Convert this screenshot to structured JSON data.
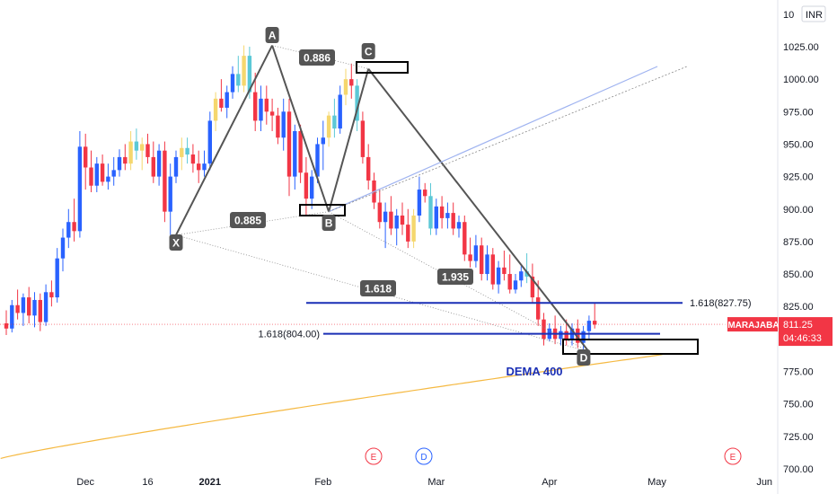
{
  "chart_data": {
    "type": "candlestick",
    "symbol": "AMARAJABAT",
    "currency": "INR",
    "last_price": "811.25",
    "countdown": "04:46:33",
    "y_axis": {
      "ylim": [
        693,
        1052
      ],
      "ticks": [
        "700.00",
        "725.00",
        "750.00",
        "775.00",
        "800.00",
        "825.00",
        "850.00",
        "875.00",
        "900.00",
        "925.00",
        "950.00",
        "975.00",
        "1000.00",
        "1025.00"
      ],
      "top_label": "10"
    },
    "x_axis": {
      "labels": [
        {
          "text": "Dec",
          "idx": 14
        },
        {
          "text": "16",
          "idx": 25
        },
        {
          "text": "2021",
          "idx": 36
        },
        {
          "text": "Feb",
          "idx": 56
        },
        {
          "text": "Mar",
          "idx": 76
        },
        {
          "text": "Apr",
          "idx": 96
        },
        {
          "text": "May",
          "idx": 115
        },
        {
          "text": "Jun",
          "idx": 134
        }
      ],
      "bold": [
        "2021"
      ]
    },
    "candles": [
      [
        812,
        822,
        803,
        808
      ],
      [
        808,
        830,
        805,
        826
      ],
      [
        826,
        838,
        815,
        820
      ],
      [
        820,
        835,
        810,
        832
      ],
      [
        832,
        840,
        812,
        818
      ],
      [
        818,
        836,
        809,
        830
      ],
      [
        830,
        835,
        806,
        813
      ],
      [
        813,
        842,
        810,
        836
      ],
      [
        836,
        845,
        825,
        832
      ],
      [
        832,
        870,
        828,
        862
      ],
      [
        862,
        885,
        852,
        878
      ],
      [
        878,
        900,
        870,
        890
      ],
      [
        890,
        908,
        875,
        883
      ],
      [
        883,
        960,
        878,
        948
      ],
      [
        948,
        958,
        915,
        932
      ],
      [
        932,
        945,
        913,
        918
      ],
      [
        918,
        940,
        913,
        935
      ],
      [
        935,
        942,
        918,
        921
      ],
      [
        921,
        935,
        915,
        925
      ],
      [
        925,
        940,
        918,
        930
      ],
      [
        930,
        946,
        925,
        940
      ],
      [
        940,
        950,
        930,
        935
      ],
      [
        935,
        960,
        930,
        952
      ],
      [
        952,
        962,
        938,
        945
      ],
      [
        945,
        955,
        930,
        950
      ],
      [
        950,
        958,
        935,
        940
      ],
      [
        940,
        952,
        920,
        925
      ],
      [
        925,
        950,
        918,
        945
      ],
      [
        945,
        952,
        890,
        898
      ],
      [
        898,
        935,
        880,
        925
      ],
      [
        925,
        945,
        920,
        940
      ],
      [
        940,
        955,
        930,
        947
      ],
      [
        947,
        955,
        935,
        942
      ],
      [
        942,
        950,
        928,
        935
      ],
      [
        935,
        945,
        920,
        930
      ],
      [
        930,
        945,
        925,
        935
      ],
      [
        935,
        975,
        930,
        968
      ],
      [
        968,
        990,
        960,
        985
      ],
      [
        985,
        1000,
        975,
        978
      ],
      [
        978,
        995,
        970,
        990
      ],
      [
        990,
        1010,
        985,
        1004
      ],
      [
        1004,
        1018,
        990,
        995
      ],
      [
        995,
        1026,
        990,
        1018
      ],
      [
        1018,
        1025,
        985,
        990
      ],
      [
        990,
        1005,
        960,
        968
      ],
      [
        968,
        995,
        960,
        985
      ],
      [
        985,
        995,
        965,
        975
      ],
      [
        975,
        985,
        960,
        972
      ],
      [
        972,
        978,
        950,
        955
      ],
      [
        955,
        985,
        945,
        975
      ],
      [
        975,
        985,
        910,
        925
      ],
      [
        925,
        965,
        915,
        960
      ],
      [
        960,
        965,
        920,
        928
      ],
      [
        928,
        940,
        895,
        908
      ],
      [
        908,
        930,
        900,
        925
      ],
      [
        925,
        955,
        920,
        950
      ],
      [
        950,
        968,
        930,
        955
      ],
      [
        955,
        975,
        948,
        972
      ],
      [
        972,
        985,
        955,
        962
      ],
      [
        962,
        995,
        958,
        988
      ],
      [
        988,
        1008,
        980,
        1000
      ],
      [
        1000,
        1012,
        985,
        995
      ],
      [
        995,
        1000,
        960,
        968
      ],
      [
        968,
        975,
        935,
        940
      ],
      [
        940,
        950,
        915,
        922
      ],
      [
        922,
        928,
        900,
        905
      ],
      [
        905,
        915,
        885,
        890
      ],
      [
        890,
        905,
        870,
        898
      ],
      [
        898,
        910,
        880,
        885
      ],
      [
        885,
        900,
        872,
        895
      ],
      [
        895,
        905,
        880,
        888
      ],
      [
        888,
        900,
        870,
        875
      ],
      [
        875,
        900,
        870,
        895
      ],
      [
        895,
        925,
        890,
        915
      ],
      [
        915,
        920,
        905,
        910
      ],
      [
        910,
        920,
        880,
        885
      ],
      [
        885,
        908,
        880,
        902
      ],
      [
        902,
        910,
        885,
        893
      ],
      [
        893,
        905,
        885,
        897
      ],
      [
        897,
        905,
        880,
        885
      ],
      [
        885,
        895,
        878,
        890
      ],
      [
        890,
        895,
        860,
        865
      ],
      [
        865,
        878,
        855,
        860
      ],
      [
        860,
        880,
        855,
        872
      ],
      [
        872,
        878,
        845,
        850
      ],
      [
        850,
        872,
        845,
        865
      ],
      [
        865,
        870,
        838,
        842
      ],
      [
        842,
        860,
        835,
        855
      ],
      [
        855,
        868,
        845,
        850
      ],
      [
        850,
        865,
        835,
        838
      ],
      [
        838,
        850,
        835,
        845
      ],
      [
        845,
        856,
        840,
        852
      ],
      [
        852,
        866,
        843,
        848
      ],
      [
        848,
        858,
        828,
        832
      ],
      [
        832,
        845,
        810,
        815
      ],
      [
        815,
        820,
        795,
        800
      ],
      [
        800,
        812,
        798,
        808
      ],
      [
        808,
        818,
        796,
        800
      ],
      [
        800,
        810,
        795,
        806
      ],
      [
        806,
        815,
        795,
        800
      ],
      [
        800,
        812,
        795,
        808
      ],
      [
        808,
        815,
        793,
        797
      ],
      [
        797,
        810,
        790,
        806
      ],
      [
        806,
        818,
        800,
        814
      ],
      [
        814,
        828,
        808,
        811
      ]
    ],
    "overlays": [
      {
        "name": "DEMA 400",
        "color": "#f5b942"
      }
    ],
    "pattern": {
      "points": [
        {
          "label": "X",
          "value": 880
        },
        {
          "label": "A",
          "value": 1026
        },
        {
          "label": "B",
          "value": 898
        },
        {
          "label": "C",
          "value": 1008
        },
        {
          "label": "D",
          "value": 790
        }
      ],
      "ratios": [
        "0.886",
        "0.885",
        "1.618",
        "1.935"
      ]
    },
    "levels": [
      {
        "label": "1.618(827.75)",
        "value": 827.75
      },
      {
        "label": "1.618(804.00)",
        "value": 804.0
      }
    ],
    "events": [
      "E",
      "D",
      "E"
    ]
  }
}
